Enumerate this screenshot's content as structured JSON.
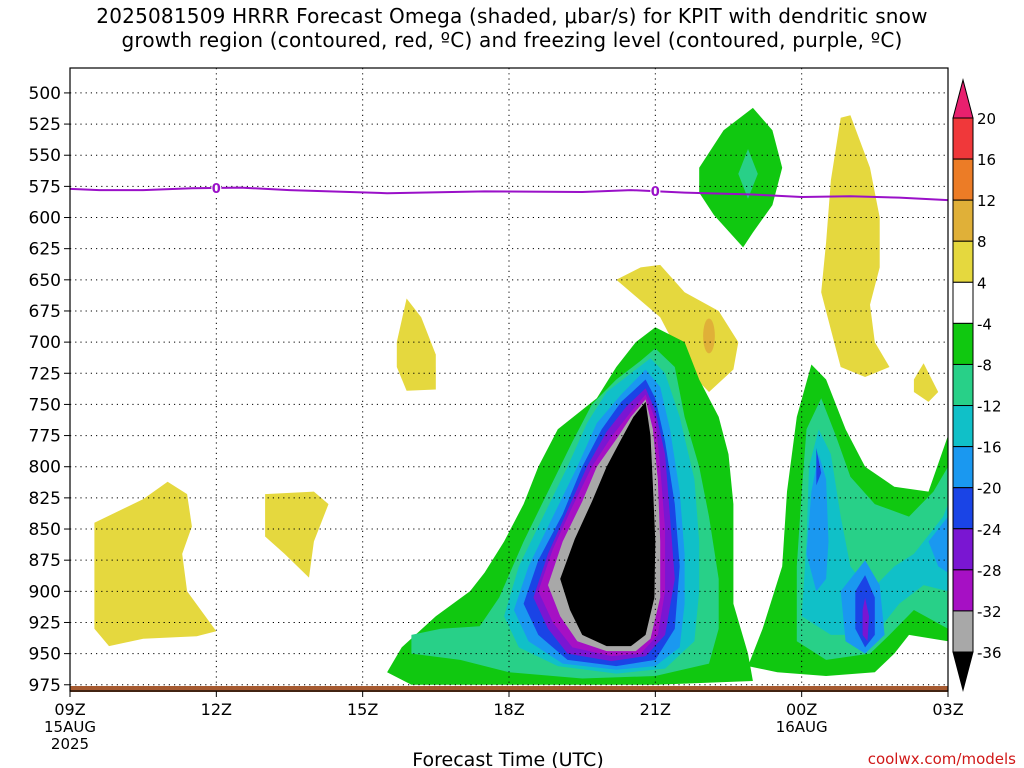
{
  "title": {
    "line1": "2025081509 HRRR Forecast Omega (shaded, μbar/s) for KPIT with dendritic snow",
    "line2": "growth region (contoured, red, ºC) and freezing level (contoured, purple, ºC)"
  },
  "chart_data": {
    "type": "heatmap",
    "xlabel": "Forecast Time (UTC)",
    "ylabel": "",
    "x_hours": [
      0,
      3,
      6,
      9,
      12,
      15,
      18
    ],
    "x_ticks": [
      "09Z",
      "12Z",
      "15Z",
      "18Z",
      "21Z",
      "00Z",
      "03Z"
    ],
    "x_subticks": [
      {
        "hour": 0,
        "lines": [
          "15AUG",
          "2025"
        ]
      },
      {
        "hour": 15,
        "lines": [
          "16AUG"
        ]
      }
    ],
    "xlim": [
      0,
      18
    ],
    "y_ticks": [
      500,
      525,
      550,
      575,
      600,
      625,
      650,
      675,
      700,
      725,
      750,
      775,
      800,
      825,
      850,
      875,
      900,
      925,
      950,
      975
    ],
    "ylim": [
      980,
      480
    ],
    "y_reversed": true,
    "grid": true,
    "colorbar": {
      "levels": [
        20,
        16,
        12,
        8,
        4,
        -4,
        -8,
        -12,
        -16,
        -20,
        -24,
        -28,
        -32,
        -36
      ],
      "colors": [
        "#e8206e",
        "#f0383a",
        "#ec7c26",
        "#e0b038",
        "#e5d83e",
        "#ffffff",
        "#10c810",
        "#28d088",
        "#10c0c8",
        "#1a98f0",
        "#1a44e6",
        "#7a16d2",
        "#a610c4",
        "#a8a8a8",
        "#000000"
      ]
    },
    "freezing_level": {
      "label": "0",
      "color": "#9a10c8",
      "points": [
        [
          0,
          577
        ],
        [
          0.6,
          578
        ],
        [
          1.5,
          578
        ],
        [
          2.5,
          576.5
        ],
        [
          3.5,
          576
        ],
        [
          4.5,
          578
        ],
        [
          6.5,
          580.5
        ],
        [
          8.5,
          579
        ],
        [
          10.5,
          579.5
        ],
        [
          11.5,
          578
        ],
        [
          12.6,
          580
        ],
        [
          14,
          581.5
        ],
        [
          15,
          583.5
        ],
        [
          16,
          583
        ],
        [
          17,
          584
        ],
        [
          18,
          586
        ]
      ],
      "label_hours": [
        3,
        12
      ]
    },
    "ground_color": "#a65a30",
    "attribution": "coolwx.com/models"
  }
}
